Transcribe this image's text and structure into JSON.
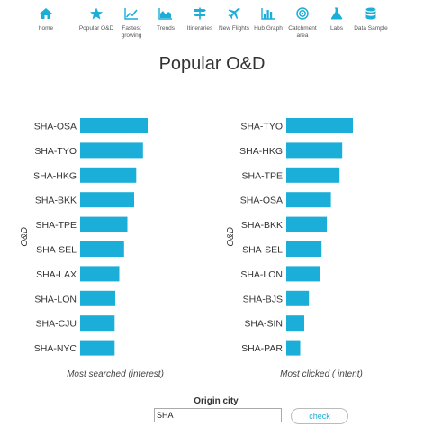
{
  "nav": {
    "accent": "#1aaed9",
    "items": [
      {
        "label": "home",
        "icon": "home-icon"
      },
      {
        "label": "Popular O&D",
        "icon": "star-icon"
      },
      {
        "label": "Fastest growing",
        "icon": "trend-line-icon"
      },
      {
        "label": "Trends",
        "icon": "area-chart-icon"
      },
      {
        "label": "Itineraries",
        "icon": "signpost-icon"
      },
      {
        "label": "New Flights",
        "icon": "plane-icon"
      },
      {
        "label": "Hub Graph",
        "icon": "bar-chart-icon"
      },
      {
        "label": "Catchment area",
        "icon": "target-icon"
      },
      {
        "label": "Labs",
        "icon": "flask-icon"
      },
      {
        "label": "Data Sample",
        "icon": "database-icon"
      }
    ]
  },
  "page": {
    "title": "Popular O&D"
  },
  "form": {
    "origin_label": "Origin city",
    "origin_value": "SHA",
    "check_label": "check"
  },
  "chart_data": [
    {
      "type": "bar",
      "orientation": "horizontal",
      "ylabel": "O&D",
      "xlabel": "Most searched (interest)",
      "bar_color": "#1aaed9",
      "categories": [
        "SHA-OSA",
        "SHA-TYO",
        "SHA-HKG",
        "SHA-BKK",
        "SHA-TPE",
        "SHA-SEL",
        "SHA-LAX",
        "SHA-LON",
        "SHA-CJU",
        "SHA-NYC"
      ],
      "values": [
        100,
        93,
        83,
        80,
        70,
        65,
        58,
        52,
        51,
        51
      ]
    },
    {
      "type": "bar",
      "orientation": "horizontal",
      "ylabel": "O&D",
      "xlabel": "Most clicked ( intent)",
      "bar_color": "#1aaed9",
      "categories": [
        "SHA-TYO",
        "SHA-HKG",
        "SHA-TPE",
        "SHA-OSA",
        "SHA-BKK",
        "SHA-SEL",
        "SHA-LON",
        "SHA-BJS",
        "SHA-SIN",
        "SHA-PAR"
      ],
      "values": [
        100,
        84,
        80,
        67,
        61,
        53,
        50,
        34,
        27,
        21
      ]
    }
  ]
}
